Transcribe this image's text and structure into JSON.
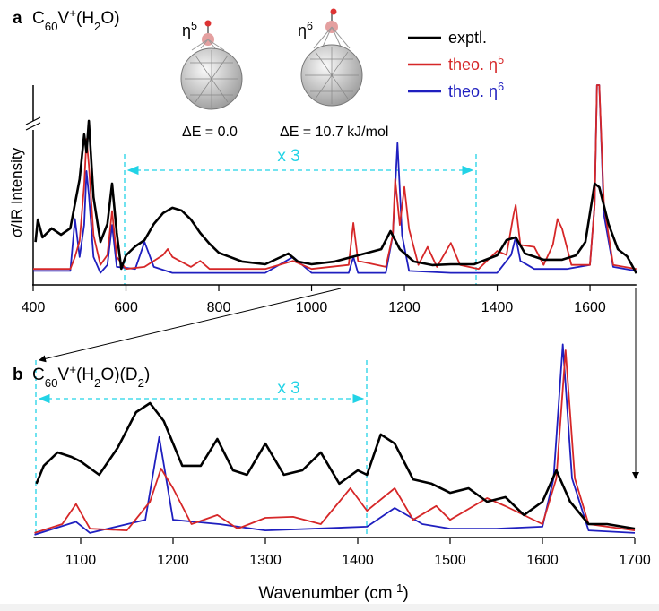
{
  "chart_data": [
    {
      "type": "line",
      "label": "a",
      "title": "C60V+(H2O)",
      "xlim": [
        400,
        1700
      ],
      "xticks": [
        400,
        600,
        800,
        1000,
        1200,
        1400,
        1600
      ],
      "ylim": [
        0,
        100
      ],
      "legend": "top-right",
      "annotations": {
        "eta5": "η5",
        "eta6": "η6",
        "de5": "ΔE = 0.0",
        "de6": "ΔE = 10.7 kJ/mol",
        "scale": "x 3"
      },
      "series": [
        {
          "name": "exptl.",
          "color": "#000000",
          "x": [
            405,
            410,
            420,
            440,
            460,
            480,
            500,
            510,
            515,
            520,
            530,
            545,
            560,
            570,
            580,
            590,
            600,
            620,
            640,
            660,
            680,
            700,
            720,
            740,
            760,
            780,
            800,
            850,
            900,
            950,
            970,
            1000,
            1050,
            1100,
            1150,
            1170,
            1190,
            1220,
            1260,
            1300,
            1350,
            1400,
            1420,
            1440,
            1460,
            1500,
            1540,
            1570,
            1590,
            1610,
            1620,
            1640,
            1660,
            1680,
            1700
          ],
          "values": [
            21.5,
            32.7,
            23.8,
            28.3,
            25.1,
            28.3,
            52.9,
            75.3,
            66.4,
            82.1,
            43.9,
            21.5,
            30.5,
            50.7,
            26,
            8.1,
            14.8,
            19.3,
            22.4,
            30.5,
            35.9,
            38.6,
            37.2,
            32.7,
            26,
            20.6,
            16.1,
            11.7,
            10.3,
            15.7,
            11.7,
            10.3,
            11.7,
            14.8,
            17.9,
            26.9,
            17.9,
            11.7,
            9.9,
            10.3,
            10.3,
            14.8,
            22.4,
            23.8,
            15.7,
            12.6,
            12.6,
            14.8,
            21.5,
            50.7,
            48.9,
            30.5,
            17.9,
            14.3,
            5.8
          ]
        },
        {
          "name": "theo. η5",
          "color": "#d62728",
          "x": [
            400,
            480,
            490,
            500,
            510,
            515,
            520,
            530,
            545,
            560,
            570,
            580,
            600,
            640,
            680,
            690,
            700,
            740,
            760,
            780,
            900,
            960,
            1000,
            1080,
            1090,
            1100,
            1160,
            1175,
            1180,
            1190,
            1200,
            1210,
            1230,
            1250,
            1270,
            1300,
            1320,
            1360,
            1400,
            1420,
            1435,
            1440,
            1450,
            1480,
            1500,
            1520,
            1530,
            1540,
            1560,
            1600,
            1610,
            1615,
            1620,
            1630,
            1650,
            1700
          ],
          "values": [
            8,
            8,
            14,
            22,
            50,
            73,
            60,
            25,
            10,
            15,
            37,
            14,
            8,
            9,
            15,
            18,
            14,
            9,
            12,
            8,
            8,
            12,
            8,
            10,
            31,
            12,
            9,
            25,
            53,
            30,
            49,
            28,
            10,
            19,
            9,
            21,
            10,
            8,
            17,
            15,
            35,
            40,
            20,
            19,
            10,
            20,
            33,
            28,
            10,
            10,
            40,
            100,
            100,
            40,
            10,
            8
          ]
        },
        {
          "name": "theo. η6",
          "color": "#1f1fbf",
          "x": [
            400,
            480,
            490,
            500,
            510,
            515,
            520,
            530,
            545,
            560,
            570,
            580,
            620,
            640,
            660,
            700,
            900,
            960,
            1000,
            1080,
            1090,
            1100,
            1160,
            1175,
            1185,
            1195,
            1210,
            1300,
            1400,
            1430,
            1440,
            1450,
            1480,
            1550,
            1600,
            1610,
            1615,
            1620,
            1630,
            1650,
            1700
          ],
          "values": [
            7,
            7,
            33,
            14,
            30,
            57,
            45,
            14,
            6,
            10,
            30,
            9,
            8,
            21.5,
            9,
            6,
            6,
            14,
            6,
            6,
            14,
            6,
            6,
            25,
            71,
            25,
            7,
            6,
            6,
            15,
            24,
            12,
            8,
            8,
            10,
            40,
            100,
            100,
            35,
            9,
            7
          ]
        }
      ]
    },
    {
      "type": "line",
      "label": "b",
      "title": "C60V+(H2O)(D2)",
      "xlabel": "Wavenumber (cm-1)",
      "ylabel": "σ/IR Intensity",
      "xlim": [
        1050,
        1700
      ],
      "xticks": [
        1100,
        1200,
        1300,
        1400,
        1500,
        1600,
        1700
      ],
      "ylim": [
        0,
        100
      ],
      "annotations": {
        "scale": "x 3"
      },
      "series": [
        {
          "name": "exptl.",
          "color": "#000000",
          "x": [
            1052,
            1060,
            1075,
            1090,
            1100,
            1120,
            1140,
            1160,
            1175,
            1190,
            1210,
            1230,
            1248,
            1265,
            1280,
            1300,
            1320,
            1340,
            1360,
            1380,
            1400,
            1410,
            1425,
            1440,
            1460,
            1480,
            1500,
            1520,
            1540,
            1560,
            1580,
            1600,
            1615,
            1630,
            1650,
            1670,
            1700
          ],
          "values": [
            27.3,
            36.4,
            43.2,
            40.9,
            38.6,
            31.8,
            45.5,
            63.6,
            68.2,
            59.1,
            36.4,
            36.4,
            50,
            34.1,
            31.8,
            47.7,
            31.8,
            34.1,
            43.2,
            27.3,
            34.1,
            31.8,
            52.3,
            47.7,
            29.5,
            27.3,
            22.7,
            25,
            18.2,
            20.5,
            11.4,
            18.2,
            34.1,
            18.2,
            6.8,
            6.8,
            4.5
          ]
        },
        {
          "name": "theo. η5",
          "color": "#d62728",
          "x": [
            1050,
            1080,
            1095,
            1110,
            1150,
            1175,
            1187,
            1200,
            1220,
            1248,
            1270,
            1300,
            1330,
            1360,
            1392,
            1410,
            1440,
            1460,
            1485,
            1500,
            1540,
            1560,
            1600,
            1615,
            1625,
            1635,
            1650,
            1700
          ],
          "values": [
            2.3,
            6.8,
            17,
            4.5,
            3.6,
            18.2,
            35,
            25,
            6.8,
            11.4,
            4.5,
            10,
            10.5,
            6.8,
            25,
            13.6,
            25,
            9,
            16,
            9,
            20,
            15.9,
            6.8,
            30,
            95,
            30,
            6.8,
            3.6
          ]
        },
        {
          "name": "theo. η6",
          "color": "#1f1fbf",
          "x": [
            1050,
            1095,
            1110,
            1170,
            1185,
            1200,
            1250,
            1300,
            1410,
            1440,
            1470,
            1500,
            1550,
            1600,
            1612,
            1622,
            1632,
            1650,
            1700
          ],
          "values": [
            1.4,
            8,
            2.3,
            9,
            51,
            9,
            6.8,
            3.6,
            5.5,
            15,
            6.8,
            4.5,
            4.5,
            5.5,
            30,
            98,
            30,
            3.6,
            2.3
          ]
        }
      ]
    }
  ]
}
